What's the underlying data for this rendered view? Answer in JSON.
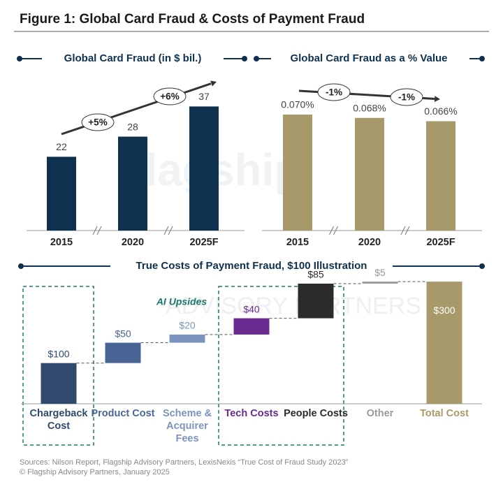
{
  "header": {
    "title": "Figure 1: Global Card Fraud & Costs of Payment Fraud"
  },
  "watermark": {
    "brand": "Flagship",
    "tagline": "ADVISORY PARTNERS"
  },
  "chart_data": [
    {
      "type": "bar",
      "title": "Global Card Fraud (in $ bil.)",
      "categories": [
        "2015",
        "2020",
        "2025F"
      ],
      "values": [
        22,
        28,
        37
      ],
      "color": "#0f3150",
      "annotations": [
        "+5%",
        "+6%"
      ]
    },
    {
      "type": "bar",
      "title": "Global Card Fraud as a % Value",
      "categories": [
        "2015",
        "2020",
        "2025F"
      ],
      "values": [
        0.07,
        0.068,
        0.066
      ],
      "value_labels": [
        "0.070%",
        "0.068%",
        "0.066%"
      ],
      "color": "#a8996a",
      "annotations": [
        "-1%",
        "-1%"
      ]
    },
    {
      "type": "waterfall",
      "title": "True Costs of Payment Fraud, $100 Illustration",
      "categories": [
        "Chargeback Cost",
        "Product Cost",
        "Scheme & Acquirer Fees",
        "Tech Costs",
        "People Costs",
        "Other",
        "Total Cost"
      ],
      "values": [
        100,
        50,
        20,
        40,
        85,
        5,
        300
      ],
      "value_labels": [
        "$100",
        "$50",
        "$20",
        "$40",
        "$85",
        "$5",
        "$300"
      ],
      "colors": [
        "#2f4a6d",
        "#4a6595",
        "#7c93bf",
        "#6a2c91",
        "#2b2b2b",
        "#9a9a9a",
        "#a8996a"
      ],
      "annotations": [
        "AI Upsides"
      ]
    }
  ],
  "footer": {
    "sources": "Sources: Nilson Report, Flagship Advisory Partners, LexisNexis “True Cost of Fraud Study 2023”",
    "copyright": "© Flagship Advisory Partners, January 2025"
  }
}
